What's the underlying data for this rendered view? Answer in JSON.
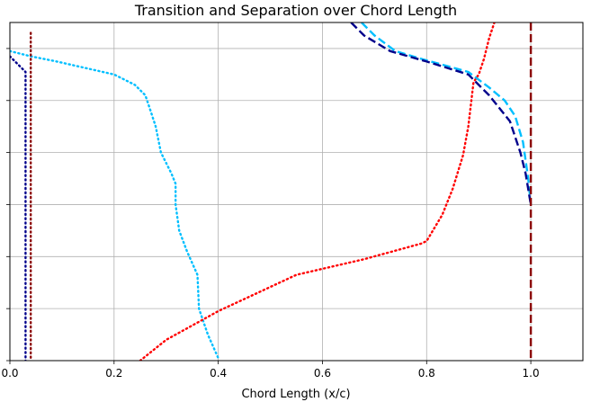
{
  "chart_data": {
    "type": "line",
    "title": "Transition and Separation over Chord Length",
    "xlabel": "Chord Length (x/c)",
    "ylabel": "",
    "xlim": [
      0.0,
      1.1
    ],
    "ylim": [
      0.0,
      6.5
    ],
    "x_ticks": [
      0.0,
      0.2,
      0.4,
      0.6,
      0.8,
      1.0
    ],
    "x_tick_labels": [
      "0.0",
      "0.2",
      "0.4",
      "0.6",
      "0.8",
      "1.0"
    ],
    "y_ticks": [
      0,
      1,
      2,
      3,
      4,
      5,
      6
    ],
    "y_tick_labels_shown": false,
    "grid": true,
    "legend": "none",
    "series": [
      {
        "style": "dotted",
        "color": "#00bfff",
        "points": [
          [
            0.0,
            5.95
          ],
          [
            0.04,
            5.85
          ],
          [
            0.09,
            5.75
          ],
          [
            0.2,
            5.5
          ],
          [
            0.24,
            5.3
          ],
          [
            0.26,
            5.1
          ],
          [
            0.27,
            4.8
          ],
          [
            0.28,
            4.5
          ],
          [
            0.29,
            4.0
          ],
          [
            0.31,
            3.6
          ],
          [
            0.318,
            3.4
          ],
          [
            0.318,
            3.0
          ],
          [
            0.325,
            2.5
          ],
          [
            0.34,
            2.1
          ],
          [
            0.36,
            1.65
          ],
          [
            0.363,
            1.0
          ],
          [
            0.38,
            0.5
          ],
          [
            0.4,
            0.05
          ]
        ]
      },
      {
        "style": "dotted",
        "color": "#00008b",
        "points": [
          [
            0.0,
            5.85
          ],
          [
            0.03,
            5.55
          ],
          [
            0.03,
            0.0
          ]
        ]
      },
      {
        "style": "dotted",
        "color": "#8b0000",
        "points": [
          [
            0.04,
            6.3
          ],
          [
            0.04,
            0.0
          ]
        ]
      },
      {
        "style": "dotted",
        "color": "#ff0000",
        "points": [
          [
            0.25,
            0.0
          ],
          [
            0.3,
            0.4
          ],
          [
            0.4,
            0.95
          ],
          [
            0.55,
            1.65
          ],
          [
            0.68,
            1.95
          ],
          [
            0.79,
            2.25
          ],
          [
            0.8,
            2.3
          ],
          [
            0.83,
            2.8
          ],
          [
            0.85,
            3.3
          ],
          [
            0.87,
            3.95
          ],
          [
            0.88,
            4.5
          ],
          [
            0.89,
            5.35
          ],
          [
            0.9,
            5.5
          ],
          [
            0.91,
            5.8
          ],
          [
            0.92,
            6.2
          ],
          [
            0.93,
            6.5
          ]
        ]
      },
      {
        "style": "dashed",
        "color": "#00bfff",
        "points": [
          [
            0.675,
            6.5
          ],
          [
            0.7,
            6.25
          ],
          [
            0.74,
            5.95
          ],
          [
            0.79,
            5.8
          ],
          [
            0.88,
            5.55
          ],
          [
            0.92,
            5.25
          ],
          [
            0.95,
            5.0
          ],
          [
            0.97,
            4.7
          ],
          [
            0.985,
            4.2
          ],
          [
            0.995,
            3.5
          ],
          [
            1.0,
            3.0
          ]
        ]
      },
      {
        "style": "dashed",
        "color": "#00008b",
        "points": [
          [
            0.655,
            6.5
          ],
          [
            0.68,
            6.25
          ],
          [
            0.73,
            5.95
          ],
          [
            0.8,
            5.75
          ],
          [
            0.88,
            5.5
          ],
          [
            0.92,
            5.1
          ],
          [
            0.96,
            4.6
          ],
          [
            0.98,
            4.0
          ],
          [
            0.99,
            3.6
          ],
          [
            1.0,
            3.0
          ]
        ]
      },
      {
        "style": "dashed",
        "color": "#8b0000",
        "points": [
          [
            1.0,
            6.5
          ],
          [
            1.0,
            0.0
          ]
        ]
      }
    ]
  }
}
